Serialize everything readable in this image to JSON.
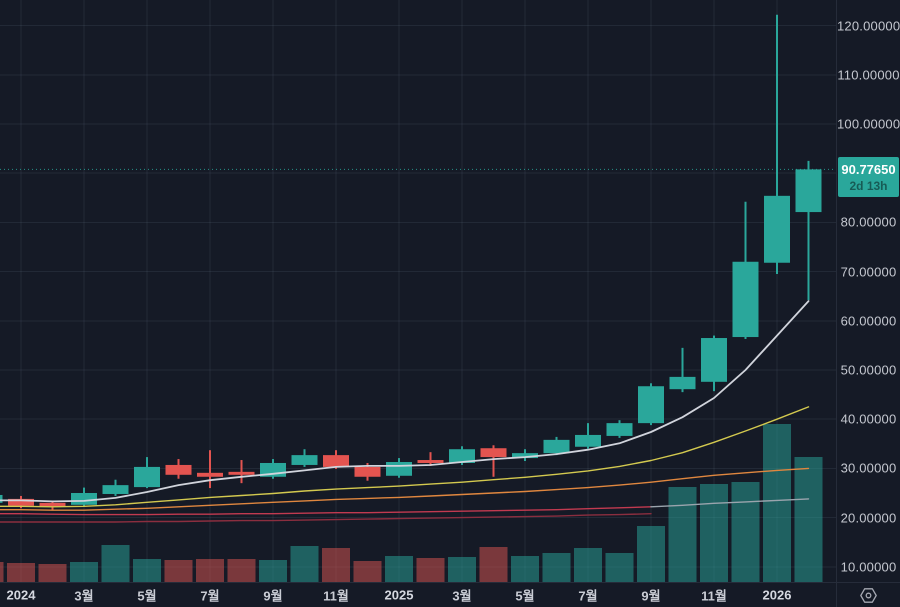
{
  "price_badge": {
    "price": "90.77650",
    "countdown": "2d 13h"
  },
  "price_axis": {
    "ticks": [
      {
        "value": 120,
        "label": "120.00000"
      },
      {
        "value": 110,
        "label": "110.00000"
      },
      {
        "value": 100,
        "label": "100.00000"
      },
      {
        "value": 90,
        "label": "90.00000",
        "hidden_by_badge": true
      },
      {
        "value": 80,
        "label": "80.00000"
      },
      {
        "value": 70,
        "label": "70.00000"
      },
      {
        "value": 60,
        "label": "60.00000"
      },
      {
        "value": 50,
        "label": "50.00000"
      },
      {
        "value": 40,
        "label": "40.00000"
      },
      {
        "value": 30,
        "label": "30.00000"
      },
      {
        "value": 20,
        "label": "20.00000"
      },
      {
        "value": 10,
        "label": "10.00000"
      }
    ]
  },
  "time_axis": {
    "ticks": [
      {
        "month_index": 1,
        "label": "2024",
        "year": true
      },
      {
        "month_index": 3,
        "label": "3월"
      },
      {
        "month_index": 5,
        "label": "5월"
      },
      {
        "month_index": 7,
        "label": "7월"
      },
      {
        "month_index": 9,
        "label": "9월"
      },
      {
        "month_index": 11,
        "label": "11월"
      },
      {
        "month_index": 13,
        "label": "2025",
        "year": true
      },
      {
        "month_index": 15,
        "label": "3월"
      },
      {
        "month_index": 17,
        "label": "5월"
      },
      {
        "month_index": 19,
        "label": "7월"
      },
      {
        "month_index": 21,
        "label": "9월"
      },
      {
        "month_index": 23,
        "label": "11월"
      },
      {
        "month_index": 25,
        "label": "2026",
        "year": true
      }
    ]
  },
  "colors": {
    "bg": "#151a26",
    "grid": "rgba(160,175,200,0.10)",
    "up": "#2aa79b",
    "down": "#e35450",
    "vol_up": "rgba(42,167,155,0.50)",
    "vol_down": "rgba(206,82,78,0.55)",
    "ma_white": "#d1d4dc",
    "ma_yellow": "#d3c94f",
    "ma_orange": "#e0873f",
    "ma_red": "#c23a50",
    "ma_gray": "#9aa4ad",
    "ma_maroon": "#8b2e3f",
    "badge_bg": "#2aa79b",
    "price_line": "#2aa79b",
    "axis_text": "#c5c8d0"
  },
  "chart_data": {
    "type": "candlestick",
    "title": "",
    "timeframe": "monthly",
    "current_price": 90.7765,
    "current_bar_countdown": "2d 13h",
    "ylim": [
      7,
      125
    ],
    "grid": true,
    "months": [
      "2023-12",
      "2024-01",
      "2024-02",
      "2024-03",
      "2024-04",
      "2024-05",
      "2024-06",
      "2024-07",
      "2024-08",
      "2024-09",
      "2024-10",
      "2024-11",
      "2024-12",
      "2025-01",
      "2025-02",
      "2025-03",
      "2025-04",
      "2025-05",
      "2025-06",
      "2025-07",
      "2025-08",
      "2025-09",
      "2025-10",
      "2025-11",
      "2025-12",
      "2026-01",
      "2026-02"
    ],
    "candles_ohlc": [
      [
        23.0,
        24.8,
        22.8,
        24.6
      ],
      [
        23.8,
        24.4,
        21.9,
        22.4
      ],
      [
        23.0,
        23.4,
        21.5,
        22.2
      ],
      [
        22.6,
        26.1,
        22.3,
        25.0
      ],
      [
        24.8,
        27.7,
        24.4,
        26.6
      ],
      [
        26.2,
        32.3,
        26.0,
        30.3
      ],
      [
        30.7,
        31.9,
        27.9,
        28.7
      ],
      [
        29.1,
        33.7,
        26.0,
        28.3
      ],
      [
        29.3,
        31.7,
        27.0,
        28.7
      ],
      [
        28.3,
        31.9,
        27.9,
        31.1
      ],
      [
        30.7,
        33.9,
        30.3,
        32.7
      ],
      [
        32.7,
        33.7,
        29.9,
        30.3
      ],
      [
        30.3,
        31.1,
        27.5,
        28.3
      ],
      [
        28.5,
        32.1,
        28.1,
        31.3
      ],
      [
        31.7,
        33.3,
        30.5,
        31.1
      ],
      [
        31.1,
        34.5,
        30.7,
        33.9
      ],
      [
        34.1,
        34.7,
        28.3,
        32.3
      ],
      [
        32.1,
        33.9,
        31.5,
        33.1
      ],
      [
        33.1,
        36.4,
        32.7,
        35.8
      ],
      [
        34.4,
        39.2,
        34.0,
        36.8
      ],
      [
        36.6,
        39.8,
        36.2,
        39.2
      ],
      [
        39.2,
        47.3,
        38.8,
        46.7
      ],
      [
        46.1,
        54.5,
        45.5,
        48.6
      ],
      [
        47.6,
        57.0,
        45.7,
        56.5
      ],
      [
        56.7,
        84.2,
        56.3,
        72.0
      ],
      [
        71.8,
        122.2,
        69.5,
        85.4
      ],
      [
        82.1,
        92.5,
        64.2,
        90.7765
      ]
    ],
    "candle_dirs": [
      "up",
      "down",
      "down",
      "up",
      "up",
      "up",
      "down",
      "down",
      "down",
      "up",
      "up",
      "down",
      "down",
      "up",
      "down",
      "up",
      "down",
      "up",
      "up",
      "up",
      "up",
      "up",
      "up",
      "up",
      "up",
      "up",
      "up"
    ],
    "volume_rel": [
      20,
      19,
      18,
      20,
      37,
      23,
      22,
      23,
      23,
      22,
      36,
      34,
      21,
      26,
      24,
      25,
      35,
      26,
      29,
      34,
      29,
      56,
      95,
      98,
      100,
      158,
      125
    ],
    "volume_dirs": [
      "down",
      "down",
      "down",
      "up",
      "up",
      "up",
      "down",
      "down",
      "down",
      "up",
      "up",
      "down",
      "down",
      "up",
      "down",
      "up",
      "down",
      "up",
      "up",
      "up",
      "up",
      "up",
      "up",
      "up",
      "up",
      "up",
      "up"
    ],
    "ma_series": [
      {
        "name": "ma-fast-white",
        "color_key": "ma_white",
        "width": 1.8,
        "start": 1,
        "values": [
          23.5,
          23.3,
          23.4,
          24.0,
          25.2,
          26.6,
          27.6,
          28.3,
          28.9,
          29.6,
          30.3,
          30.5,
          30.5,
          30.7,
          31.3,
          31.9,
          32.3,
          32.9,
          33.8,
          35.1,
          37.4,
          40.4,
          44.3,
          50.0,
          57.0,
          64.0
        ]
      },
      {
        "name": "ma-mid-yellow",
        "color_key": "ma_yellow",
        "width": 1.4,
        "start": 1,
        "values": [
          22.3,
          22.2,
          22.3,
          22.6,
          23.1,
          23.6,
          24.1,
          24.5,
          24.9,
          25.4,
          25.8,
          26.1,
          26.4,
          26.8,
          27.2,
          27.7,
          28.2,
          28.8,
          29.5,
          30.4,
          31.6,
          33.2,
          35.3,
          37.6,
          40.0,
          42.5
        ]
      },
      {
        "name": "ma-slow-orange",
        "color_key": "ma_orange",
        "width": 1.4,
        "start": 1,
        "values": [
          21.6,
          21.5,
          21.5,
          21.7,
          21.9,
          22.2,
          22.5,
          22.8,
          23.1,
          23.4,
          23.7,
          23.9,
          24.1,
          24.4,
          24.7,
          25.0,
          25.3,
          25.7,
          26.1,
          26.6,
          27.2,
          27.9,
          28.6,
          29.1,
          29.6,
          30.0
        ]
      },
      {
        "name": "ma-long-red",
        "color_key": "ma_red",
        "width": 1.4,
        "start": 1,
        "values": [
          20.8,
          20.7,
          20.6,
          20.6,
          20.6,
          20.7,
          20.7,
          20.8,
          20.8,
          20.9,
          21.0,
          21.0,
          21.1,
          21.2,
          21.3,
          21.4,
          21.5,
          21.6,
          21.8,
          22.0,
          22.2
        ]
      },
      {
        "name": "ma-long-red-over-volume",
        "color_key": "ma_gray",
        "width": 1.4,
        "start": 21,
        "values": [
          22.2,
          22.5,
          22.9,
          23.2,
          23.5,
          23.8
        ]
      },
      {
        "name": "ma-longest-maroon",
        "color_key": "ma_maroon",
        "width": 1.4,
        "start": 1,
        "values": [
          19.1,
          19.1,
          19.1,
          19.1,
          19.2,
          19.2,
          19.3,
          19.4,
          19.4,
          19.5,
          19.6,
          19.7,
          19.8,
          19.9,
          20.0,
          20.1,
          20.2,
          20.3,
          20.5,
          20.6,
          20.8
        ]
      }
    ],
    "legend_position": "none",
    "xlabel": "",
    "ylabel": ""
  }
}
